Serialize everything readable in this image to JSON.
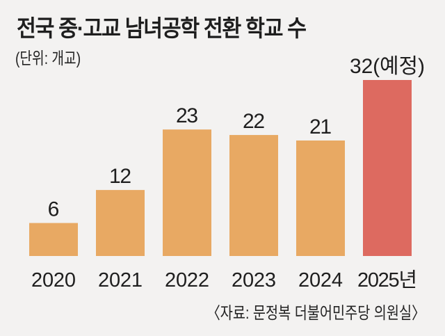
{
  "chart_data": {
    "type": "bar",
    "title": "전국 중·고교 남녀공학 전환 학교 수",
    "unit_label": "(단위: 개교)",
    "source": "〈자료: 문정복 더불어민주당 의원실〉",
    "categories": [
      "2020",
      "2021",
      "2022",
      "2023",
      "2024",
      "2025년"
    ],
    "values": [
      6,
      12,
      23,
      22,
      21,
      32
    ],
    "value_labels": [
      "6",
      "12",
      "23",
      "22",
      "21",
      "32(예정)"
    ],
    "ylim": [
      0,
      32
    ],
    "grid": false,
    "colors": {
      "actual": "#e8a963",
      "planned": "#dd6a60",
      "background": "#f3f2f1"
    }
  }
}
